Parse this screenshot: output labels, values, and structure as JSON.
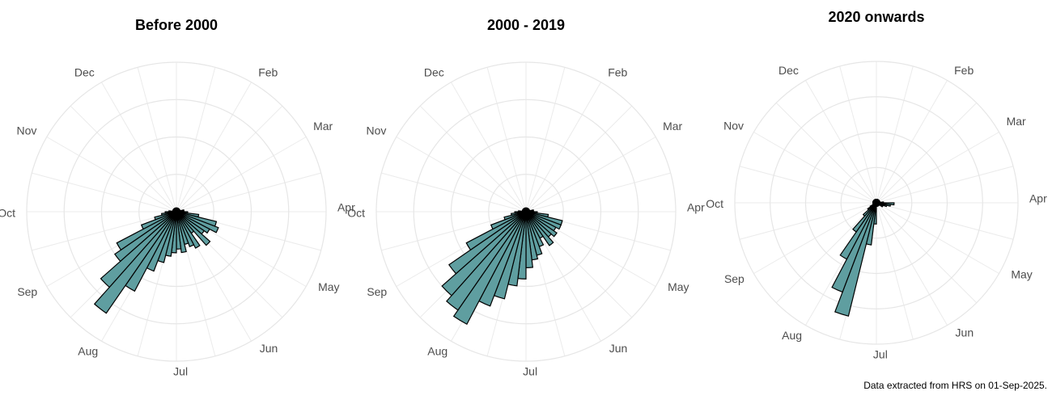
{
  "chart_data": [
    {
      "type": "rose",
      "title": "Before 2000",
      "theta_labels": [
        null,
        "Feb",
        "Mar",
        "Apr",
        "May",
        "Jun",
        "Jul",
        "Aug",
        "Sep",
        "Oct",
        "Nov",
        "Dec"
      ],
      "values": [
        1,
        1,
        1,
        1,
        1,
        1,
        1,
        1,
        1,
        1,
        1,
        2,
        2,
        3,
        6,
        11,
        12,
        10,
        9,
        12,
        7,
        11,
        10,
        9,
        11,
        10,
        11,
        12,
        14,
        17,
        24,
        33,
        27,
        20,
        18,
        10,
        6,
        4,
        3,
        2,
        1,
        1,
        1,
        1,
        1,
        1,
        1,
        1,
        1,
        1,
        1,
        1
      ],
      "color": "#5f9ea0",
      "rlim": [
        0,
        40
      ],
      "rticks": [
        10,
        20,
        30,
        40
      ]
    },
    {
      "type": "rose",
      "title": "2000 - 2019",
      "theta_labels": [
        null,
        "Feb",
        "Mar",
        "Apr",
        "May",
        "Jun",
        "Jul",
        "Aug",
        "Sep",
        "Oct",
        "Nov",
        "Dec"
      ],
      "values": [
        1,
        1,
        1,
        1,
        1,
        1,
        1,
        1,
        1,
        1,
        1,
        2,
        2,
        3,
        6,
        10,
        10,
        9,
        10,
        9,
        11,
        8,
        10,
        12,
        13,
        15,
        18,
        20,
        24,
        27,
        34,
        32,
        30,
        25,
        18,
        10,
        6,
        4,
        3,
        2,
        1,
        1,
        1,
        1,
        1,
        1,
        1,
        1,
        1,
        1,
        1,
        1
      ],
      "color": "#5f9ea0",
      "rlim": [
        0,
        40
      ],
      "rticks": [
        10,
        20,
        30,
        40
      ]
    },
    {
      "type": "rose",
      "title": "2020 onwards",
      "theta_labels": [
        null,
        "Feb",
        "Mar",
        "Apr",
        "May",
        "Jun",
        "Jul",
        "Aug",
        "Sep",
        "Oct",
        "Nov",
        "Dec"
      ],
      "values": [
        1,
        1,
        1,
        1,
        1,
        1,
        1,
        1,
        1,
        1,
        1,
        1,
        2,
        5,
        4,
        3,
        2,
        2,
        1,
        1,
        1,
        1,
        1,
        1,
        1,
        1,
        6,
        12,
        33,
        27,
        18,
        10,
        5,
        3,
        2,
        1,
        1,
        1,
        1,
        1,
        1,
        1,
        1,
        1,
        1,
        1,
        1,
        1,
        1,
        1,
        1,
        1
      ],
      "color": "#5f9ea0",
      "rlim": [
        0,
        40
      ],
      "rticks": [
        10,
        20,
        30,
        40
      ]
    }
  ],
  "caption": "Data extracted from HRS on 01-Sep-2025."
}
